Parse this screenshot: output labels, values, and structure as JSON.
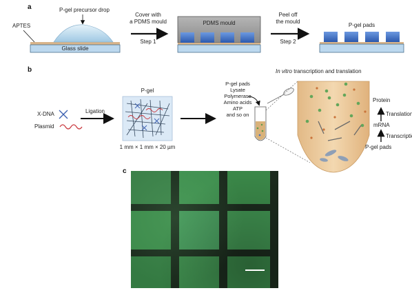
{
  "panel_a": {
    "label": "a",
    "aptes": "APTES",
    "precursor_drop": "P-gel precursor drop",
    "glass_slide": "Glass slide",
    "step1_line1": "Cover with",
    "step1_line2": "a PDMS mould",
    "step1": "Step 1",
    "pdms_mould": "PDMS mould",
    "step2_line1": "Peel off",
    "step2_line2": "the mould",
    "step2": "Step 2",
    "pgel_pads": "P-gel pads"
  },
  "panel_b": {
    "label": "b",
    "xdna": "X-DNA",
    "plasmid": "Plasmid",
    "ligation": "Ligation",
    "pgel": "P-gel",
    "dimensions": "1 mm × 1 mm × 20 µm",
    "ingredients": [
      "P-gel pads",
      "Lysate",
      "Polymerase",
      "Amino acids",
      "ATP",
      "and so on"
    ],
    "in_vitro_italic": "In vitro",
    "in_vitro_rest": " transcription and translation",
    "protein": "Protein",
    "translation": "Translation",
    "mrna": "mRNA",
    "transcription": "Transcription",
    "pgel_pads": "P-gel pads"
  },
  "panel_c": {
    "label": "c"
  },
  "colors": {
    "slide": "#bcd8ee",
    "aptes": "#d8b48a",
    "pad": "#3f6fc4",
    "mould": "#9a9a9a",
    "tube": "#ecc99a",
    "micro_bg": "#1b2a1d",
    "micro_green": "#3f8f4f"
  }
}
